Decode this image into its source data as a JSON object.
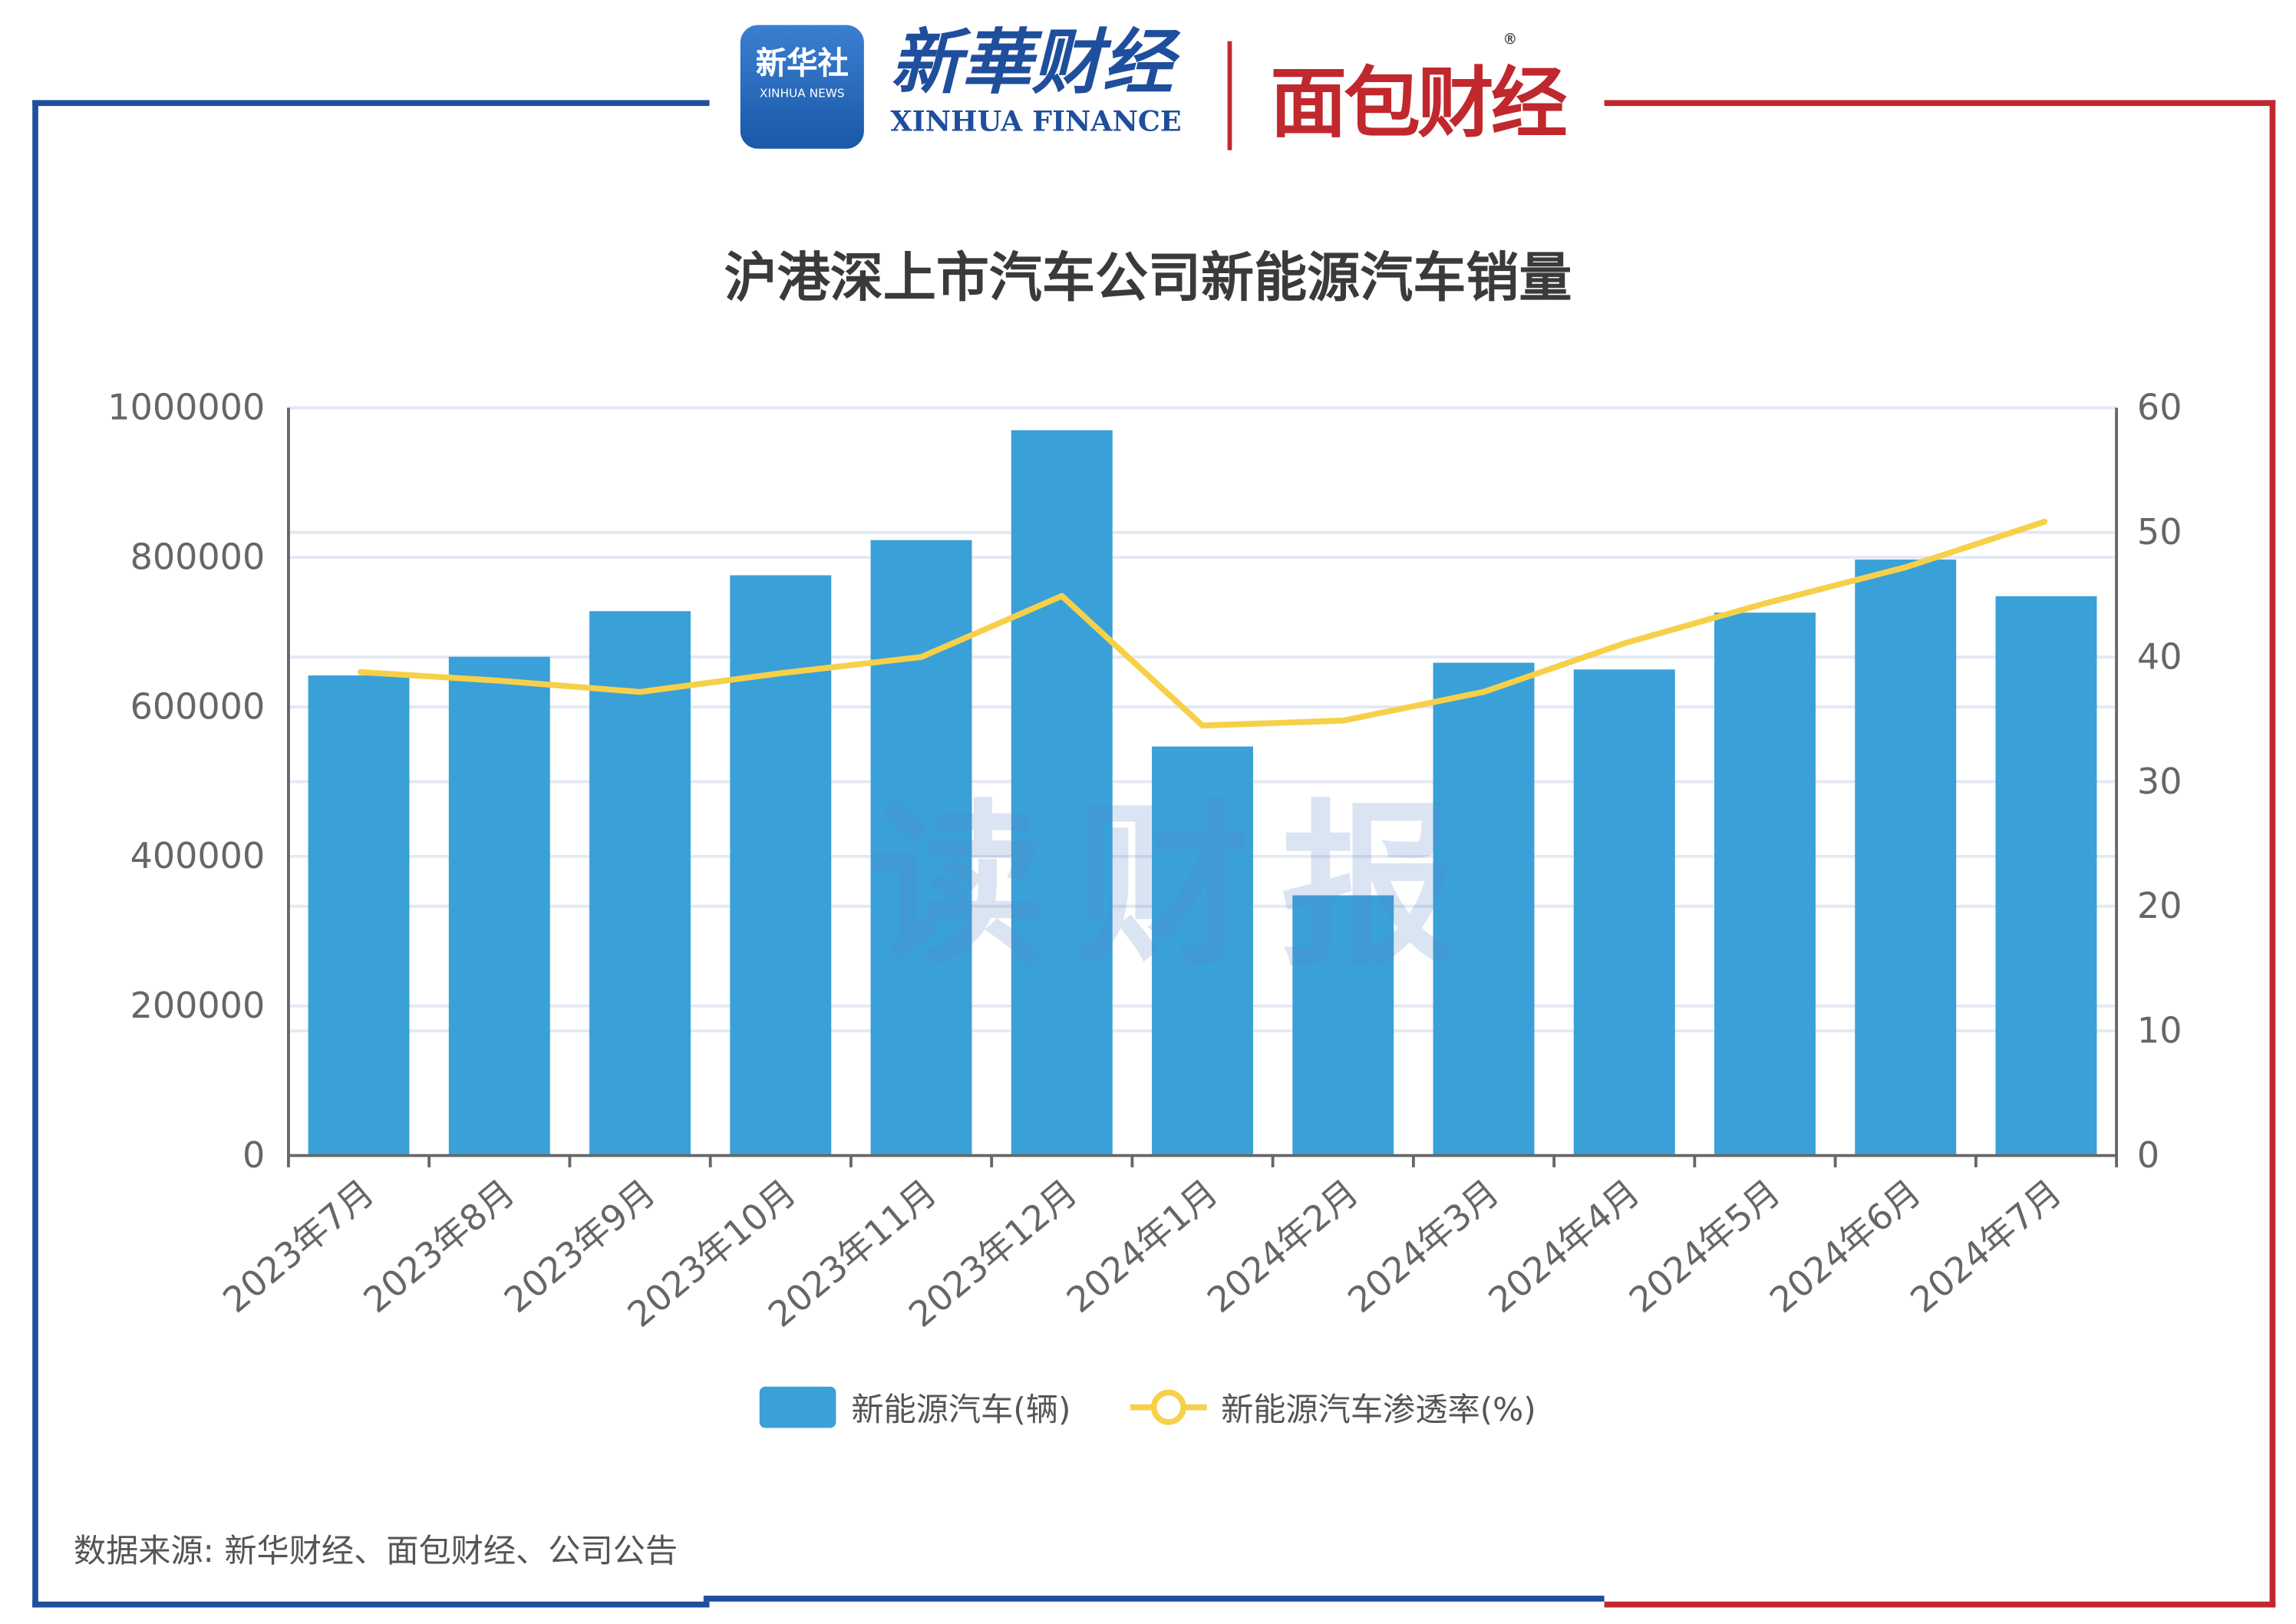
{
  "header": {
    "logo_xinhua_news_cn": "新华社",
    "logo_xinhua_news_en": "XINHUA NEWS",
    "logo_xinhua_finance_cn": "新華财经",
    "logo_xinhua_finance_en": "XINHUA FINANCE",
    "logo_mianbao": "面包财经",
    "watermark": "读财报"
  },
  "colors": {
    "bar": "#3aa0d8",
    "line": "#f7d04a",
    "frame_left": "#1f4e9c",
    "frame_right": "#c0282d"
  },
  "chart_data": {
    "type": "bar+line",
    "title": "沪港深上市汽车公司新能源汽车销量",
    "categories": [
      "2023年7月",
      "2023年8月",
      "2023年9月",
      "2023年10月",
      "2023年11月",
      "2023年12月",
      "2024年1月",
      "2024年2月",
      "2024年3月",
      "2024年4月",
      "2024年5月",
      "2024年6月",
      "2024年7月"
    ],
    "series": [
      {
        "name": "新能源汽车(辆)",
        "type": "bar",
        "axis": "left",
        "values": [
          642000,
          667000,
          728000,
          776000,
          823000,
          970000,
          547000,
          348000,
          659000,
          650000,
          726000,
          797000,
          748000
        ]
      },
      {
        "name": "新能源汽车渗透率(%)",
        "type": "line",
        "axis": "right",
        "values": [
          38.8,
          38.1,
          37.2,
          38.7,
          40.0,
          44.9,
          34.5,
          34.9,
          37.2,
          41.1,
          44.3,
          47.2,
          50.9
        ]
      }
    ],
    "y_left": {
      "range": [
        0,
        1000000
      ],
      "ticks": [
        "0",
        "200000",
        "400000",
        "600000",
        "800000",
        "1000000"
      ]
    },
    "y_right": {
      "range": [
        0,
        60
      ],
      "ticks": [
        "0",
        "10",
        "20",
        "30",
        "40",
        "50",
        "60"
      ]
    },
    "grid": true,
    "legend_position": "bottom"
  },
  "source": "数据来源: 新华财经、面包财经、公司公告"
}
